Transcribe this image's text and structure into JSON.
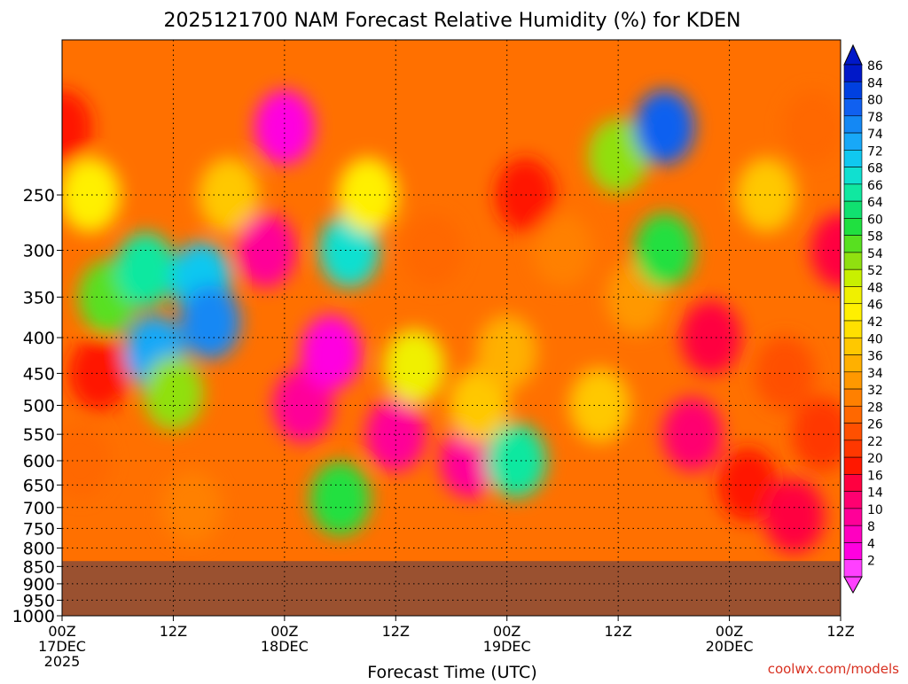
{
  "chart_data": {
    "type": "heatmap",
    "title": "2025121700 NAM Forecast Relative Humidity (%) for KDEN",
    "xlabel": "Forecast Time (UTC)",
    "ylabel": "",
    "watermark": "coolwx.com/models",
    "y_scale": "log-pressure",
    "y_inverted": true,
    "ylim": [
      1000,
      150
    ],
    "xlim": [
      0,
      84
    ],
    "grid": true,
    "y_ticks": [
      250,
      300,
      350,
      400,
      450,
      500,
      550,
      600,
      650,
      700,
      750,
      800,
      850,
      900,
      950,
      1000
    ],
    "x_ticks": [
      {
        "hour": 0,
        "lines": [
          "00Z",
          "17DEC",
          "2025"
        ]
      },
      {
        "hour": 12,
        "lines": [
          "12Z"
        ]
      },
      {
        "hour": 24,
        "lines": [
          "00Z",
          "18DEC"
        ]
      },
      {
        "hour": 36,
        "lines": [
          "12Z"
        ]
      },
      {
        "hour": 48,
        "lines": [
          "00Z",
          "19DEC"
        ]
      },
      {
        "hour": 60,
        "lines": [
          "12Z"
        ]
      },
      {
        "hour": 72,
        "lines": [
          "00Z",
          "20DEC"
        ]
      },
      {
        "hour": 84,
        "lines": [
          "12Z"
        ]
      }
    ],
    "colorbar": {
      "levels": [
        86,
        84,
        80,
        78,
        74,
        72,
        68,
        66,
        64,
        60,
        58,
        54,
        52,
        48,
        46,
        42,
        40,
        36,
        34,
        32,
        28,
        26,
        22,
        20,
        16,
        14,
        10,
        8,
        4,
        2
      ],
      "colors": [
        "#0018c8",
        "#0040e0",
        "#1060f0",
        "#1488f4",
        "#18a8f8",
        "#10c8f0",
        "#10e0d0",
        "#10e8a0",
        "#10e070",
        "#20e040",
        "#58e020",
        "#90e010",
        "#c8f000",
        "#f0f000",
        "#fff000",
        "#ffe000",
        "#ffc800",
        "#ffb000",
        "#ff9800",
        "#ff8000",
        "#ff6800",
        "#ff5000",
        "#ff3800",
        "#ff1800",
        "#ff0040",
        "#ff0070",
        "#ff0098",
        "#ff00c0",
        "#ff00e0",
        "#ff40ff"
      ],
      "extend": "both"
    },
    "ground_color": "#9a5130",
    "ground_top_pressure_approx": 835,
    "rh_field_samples": [
      {
        "hour": 0,
        "pressure": 200,
        "rh": 20
      },
      {
        "hour": 3,
        "pressure": 250,
        "rh": 46
      },
      {
        "hour": 5,
        "pressure": 350,
        "rh": 58
      },
      {
        "hour": 4,
        "pressure": 450,
        "rh": 20
      },
      {
        "hour": 2,
        "pressure": 600,
        "rh": 28
      },
      {
        "hour": 9,
        "pressure": 320,
        "rh": 66
      },
      {
        "hour": 10,
        "pressure": 420,
        "rh": 74
      },
      {
        "hour": 12,
        "pressure": 480,
        "rh": 54
      },
      {
        "hour": 15,
        "pressure": 330,
        "rh": 72
      },
      {
        "hour": 16,
        "pressure": 380,
        "rh": 78
      },
      {
        "hour": 18,
        "pressure": 250,
        "rh": 40
      },
      {
        "hour": 14,
        "pressure": 700,
        "rh": 32
      },
      {
        "hour": 22,
        "pressure": 300,
        "rh": 10
      },
      {
        "hour": 24,
        "pressure": 200,
        "rh": 6
      },
      {
        "hour": 26,
        "pressure": 500,
        "rh": 10
      },
      {
        "hour": 29,
        "pressure": 420,
        "rh": 4
      },
      {
        "hour": 30,
        "pressure": 680,
        "rh": 60
      },
      {
        "hour": 31,
        "pressure": 300,
        "rh": 70
      },
      {
        "hour": 33,
        "pressure": 250,
        "rh": 46
      },
      {
        "hour": 36,
        "pressure": 550,
        "rh": 12
      },
      {
        "hour": 38,
        "pressure": 440,
        "rh": 48
      },
      {
        "hour": 40,
        "pressure": 300,
        "rh": 30
      },
      {
        "hour": 44,
        "pressure": 600,
        "rh": 10
      },
      {
        "hour": 45,
        "pressure": 500,
        "rh": 40
      },
      {
        "hour": 48,
        "pressure": 420,
        "rh": 36
      },
      {
        "hour": 49,
        "pressure": 600,
        "rh": 66
      },
      {
        "hour": 50,
        "pressure": 250,
        "rh": 20
      },
      {
        "hour": 54,
        "pressure": 300,
        "rh": 32
      },
      {
        "hour": 58,
        "pressure": 500,
        "rh": 40
      },
      {
        "hour": 60,
        "pressure": 220,
        "rh": 56
      },
      {
        "hour": 62,
        "pressure": 350,
        "rh": 34
      },
      {
        "hour": 65,
        "pressure": 200,
        "rh": 80
      },
      {
        "hour": 65,
        "pressure": 300,
        "rh": 62
      },
      {
        "hour": 68,
        "pressure": 550,
        "rh": 14
      },
      {
        "hour": 70,
        "pressure": 400,
        "rh": 16
      },
      {
        "hour": 74,
        "pressure": 650,
        "rh": 20
      },
      {
        "hour": 76,
        "pressure": 250,
        "rh": 40
      },
      {
        "hour": 78,
        "pressure": 450,
        "rh": 26
      },
      {
        "hour": 81,
        "pressure": 200,
        "rh": 28
      },
      {
        "hour": 82,
        "pressure": 550,
        "rh": 24
      },
      {
        "hour": 79,
        "pressure": 720,
        "rh": 16
      },
      {
        "hour": 84,
        "pressure": 300,
        "rh": 18
      }
    ]
  }
}
